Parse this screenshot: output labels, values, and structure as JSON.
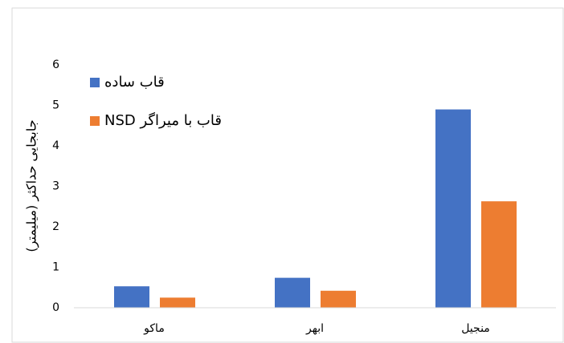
{
  "chart_data": {
    "type": "bar",
    "y_label": "جابجایی حداکثر (میلیمتر)",
    "categories": [
      "ماکو",
      "ابهر",
      "منجیل"
    ],
    "series": [
      {
        "name": "قاب ساده",
        "color": "#4472c4",
        "values": [
          0.53,
          0.74,
          4.9
        ]
      },
      {
        "name": "قاب با میراگر NSD",
        "color": "#ed7d31",
        "values": [
          0.25,
          0.42,
          2.63
        ]
      }
    ],
    "ylim": [
      0,
      6
    ],
    "yticks": [
      0,
      1,
      2,
      3,
      4,
      5,
      6
    ],
    "grid": false,
    "legend": "top-left"
  }
}
